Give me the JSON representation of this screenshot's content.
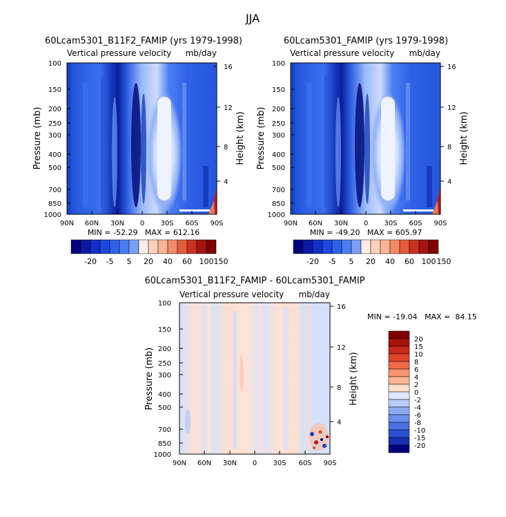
{
  "figure_title": "JJA",
  "colors": {
    "negative_dark": "#00007f",
    "negative_mid": "#2a5ae0",
    "neutral": "#eef2ff",
    "positive_light": "#ffd2bf",
    "positive_dark": "#7f0000"
  },
  "chart_data": [
    {
      "type": "heatmap",
      "panel": "top-left",
      "title": "60Lcam5301_B11F2_FAMIP (yrs 1979-1998)",
      "subtitle_left": "Vertical pressure velocity",
      "subtitle_right": "mb/day",
      "xlabel": "",
      "ylabel": "Pressure (mb)",
      "ylabel_right": "Height (km)",
      "x_ticks": [
        "90N",
        "60N",
        "30N",
        "0",
        "30S",
        "60S",
        "90S"
      ],
      "y_ticks": [
        "100",
        "150",
        "200",
        "250",
        "300",
        "400",
        "500",
        "700",
        "850",
        "1000"
      ],
      "y_ticks_right": [
        "16",
        "12",
        "8",
        "4"
      ],
      "min_max_text": "MIN = -52.29   MAX = 612.16",
      "colorbar_labels": [
        "-20",
        "-5",
        "5",
        "20",
        "40",
        "60",
        "100",
        "150"
      ],
      "colorbar_levels": 15,
      "colorbar_orientation": "horizontal"
    },
    {
      "type": "heatmap",
      "panel": "top-right",
      "title": "60Lcam5301_FAMIP (yrs 1979-1998)",
      "subtitle_left": "Vertical pressure velocity",
      "subtitle_right": "mb/day",
      "xlabel": "",
      "ylabel": "Pressure (mb)",
      "ylabel_right": "Height (km)",
      "x_ticks": [
        "90N",
        "60N",
        "30N",
        "0",
        "30S",
        "60S",
        "90S"
      ],
      "y_ticks": [
        "100",
        "150",
        "200",
        "250",
        "300",
        "400",
        "500",
        "700",
        "850",
        "1000"
      ],
      "y_ticks_right": [
        "16",
        "12",
        "8",
        "4"
      ],
      "min_max_text": "MIN = -49.20   MAX = 605.97",
      "colorbar_labels": [
        "-20",
        "-5",
        "5",
        "20",
        "40",
        "60",
        "100",
        "150"
      ],
      "colorbar_levels": 15,
      "colorbar_orientation": "horizontal"
    },
    {
      "type": "heatmap",
      "panel": "bottom",
      "title": "60Lcam5301_B11F2_FAMIP - 60Lcam5301_FAMIP",
      "subtitle_left": "Vertical pressure velocity",
      "subtitle_right": "mb/day",
      "xlabel": "",
      "ylabel": "Pressure (mb)",
      "ylabel_right": "Height (km)",
      "x_ticks": [
        "90N",
        "60N",
        "30N",
        "0",
        "30S",
        "60S",
        "90S"
      ],
      "y_ticks": [
        "100",
        "150",
        "200",
        "250",
        "300",
        "400",
        "500",
        "700",
        "850",
        "1000"
      ],
      "y_ticks_right": [
        "16",
        "12",
        "8",
        "4"
      ],
      "min_max_text": "MIN = -19.04   MAX =  84.15",
      "colorbar_labels": [
        "20",
        "15",
        "10",
        "8",
        "6",
        "4",
        "2",
        "0",
        "-2",
        "-4",
        "-6",
        "-8",
        "-10",
        "-15",
        "-20"
      ],
      "colorbar_levels": 16,
      "colorbar_orientation": "vertical"
    }
  ]
}
